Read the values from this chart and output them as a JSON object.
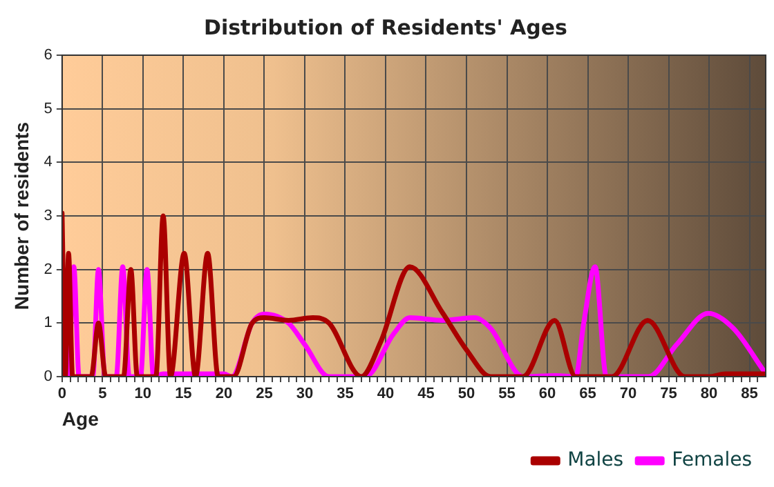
{
  "chart_data": {
    "type": "line",
    "title": "Distribution of Residents' Ages",
    "xlabel": "Age",
    "ylabel": "Number of residents",
    "series": [
      {
        "name": "Males",
        "color": "#aa0000",
        "x": [
          0,
          0.4,
          0.8,
          1.3,
          2,
          3.6,
          4.5,
          5.4,
          7.6,
          8.5,
          9.3,
          11.6,
          12.5,
          13.4,
          15.1,
          16.5,
          18,
          19.3,
          21.2,
          23.5,
          25,
          28,
          31,
          33,
          37,
          39.4,
          43,
          47,
          50,
          53,
          57,
          60.9,
          63.5,
          68,
          72.4,
          77,
          80,
          82,
          86.8
        ],
        "values": [
          3.05,
          0,
          2.3,
          0,
          0,
          0,
          1,
          0,
          0,
          2,
          0,
          0,
          3,
          0,
          2.3,
          0,
          2.3,
          0,
          0,
          1,
          1.1,
          1.05,
          1.1,
          1,
          0,
          0.65,
          2.05,
          1.2,
          0.5,
          0,
          0,
          1.05,
          0,
          0,
          1.05,
          0,
          0,
          0.05,
          0.05
        ]
      },
      {
        "name": "Females",
        "color": "#ff00ff",
        "x": [
          0.9,
          1.45,
          2.1,
          3.8,
          4.5,
          5.3,
          6.7,
          7.5,
          8.3,
          9.7,
          10.5,
          11.3,
          12.5,
          14,
          16.5,
          20,
          21,
          23.5,
          25,
          28,
          30,
          33,
          37.5,
          41,
          43,
          47,
          51,
          53,
          57,
          61,
          63.5,
          64.5,
          65.9,
          67.3,
          68,
          72.5,
          76,
          79.9,
          83,
          86.8
        ],
        "values": [
          0,
          2.05,
          0,
          0,
          2,
          0,
          0,
          2.05,
          0,
          0,
          2,
          0,
          0.05,
          0.05,
          0.05,
          0.05,
          0,
          1,
          1.17,
          1,
          0.6,
          0,
          0,
          0.8,
          1.1,
          1.05,
          1.1,
          0.9,
          0,
          0.02,
          0,
          1,
          2.05,
          0,
          0,
          0,
          0.6,
          1.18,
          0.9,
          0.1
        ]
      }
    ],
    "xlim": [
      0,
      87
    ],
    "xticks": [
      0,
      {
        "value": 1,
        "label": null
      },
      {
        "value": 2,
        "label": null
      },
      {
        "value": 3,
        "label": null
      },
      {
        "value": 4,
        "label": null
      },
      5,
      {
        "value": 6,
        "label": null
      },
      {
        "value": 7,
        "label": null
      },
      {
        "value": 8,
        "label": null
      },
      {
        "value": 9,
        "label": null
      },
      10,
      {
        "value": 11,
        "label": null
      },
      {
        "value": 12,
        "label": null
      },
      {
        "value": 13,
        "label": null
      },
      {
        "value": 14,
        "label": null
      },
      15,
      {
        "value": 16,
        "label": null
      },
      {
        "value": 17,
        "label": null
      },
      {
        "value": 18,
        "label": null
      },
      {
        "value": 19,
        "label": null
      },
      20,
      {
        "value": 21,
        "label": null
      },
      {
        "value": 22,
        "label": null
      },
      {
        "value": 23,
        "label": null
      },
      {
        "value": 24,
        "label": null
      },
      25,
      {
        "value": 26,
        "label": null
      },
      {
        "value": 27,
        "label": null
      },
      {
        "value": 28,
        "label": null
      },
      {
        "value": 29,
        "label": null
      },
      30,
      {
        "value": 31,
        "label": null
      },
      {
        "value": 32,
        "label": null
      },
      {
        "value": 33,
        "label": null
      },
      {
        "value": 34,
        "label": null
      },
      35,
      {
        "value": 36,
        "label": null
      },
      {
        "value": 37,
        "label": null
      },
      {
        "value": 38,
        "label": null
      },
      {
        "value": 39,
        "label": null
      },
      40,
      {
        "value": 41,
        "label": null
      },
      {
        "value": 42,
        "label": null
      },
      {
        "value": 43,
        "label": null
      },
      {
        "value": 44,
        "label": null
      },
      45,
      {
        "value": 46,
        "label": null
      },
      {
        "value": 47,
        "label": null
      },
      {
        "value": 48,
        "label": null
      },
      {
        "value": 49,
        "label": null
      },
      50,
      {
        "value": 51,
        "label": null
      },
      {
        "value": 52,
        "label": null
      },
      {
        "value": 53,
        "label": null
      },
      {
        "value": 54,
        "label": null
      },
      55,
      {
        "value": 56,
        "label": null
      },
      {
        "value": 57,
        "label": null
      },
      {
        "value": 58,
        "label": null
      },
      {
        "value": 59,
        "label": null
      },
      60,
      {
        "value": 61,
        "label": null
      },
      {
        "value": 62,
        "label": null
      },
      {
        "value": 63,
        "label": null
      },
      {
        "value": 64,
        "label": null
      },
      65,
      {
        "value": 66,
        "label": null
      },
      {
        "value": 67,
        "label": null
      },
      {
        "value": 68,
        "label": null
      },
      {
        "value": 69,
        "label": null
      },
      70,
      {
        "value": 71,
        "label": null
      },
      {
        "value": 72,
        "label": null
      },
      {
        "value": 73,
        "label": null
      },
      {
        "value": 74,
        "label": null
      },
      75,
      {
        "value": 76,
        "label": null
      },
      {
        "value": 77,
        "label": null
      },
      {
        "value": 78,
        "label": null
      },
      {
        "value": 79,
        "label": null
      },
      80,
      {
        "value": 81,
        "label": null
      },
      {
        "value": 82,
        "label": null
      },
      {
        "value": 83,
        "label": null
      },
      {
        "value": 84,
        "label": null
      },
      85,
      {
        "value": 86,
        "label": null
      }
    ],
    "ylim": [
      0,
      6
    ],
    "yticks": [
      0,
      1,
      2,
      3,
      4,
      5,
      6
    ],
    "grid": true,
    "legend": "bottom right",
    "marker": "none",
    "line_style": "solid"
  }
}
